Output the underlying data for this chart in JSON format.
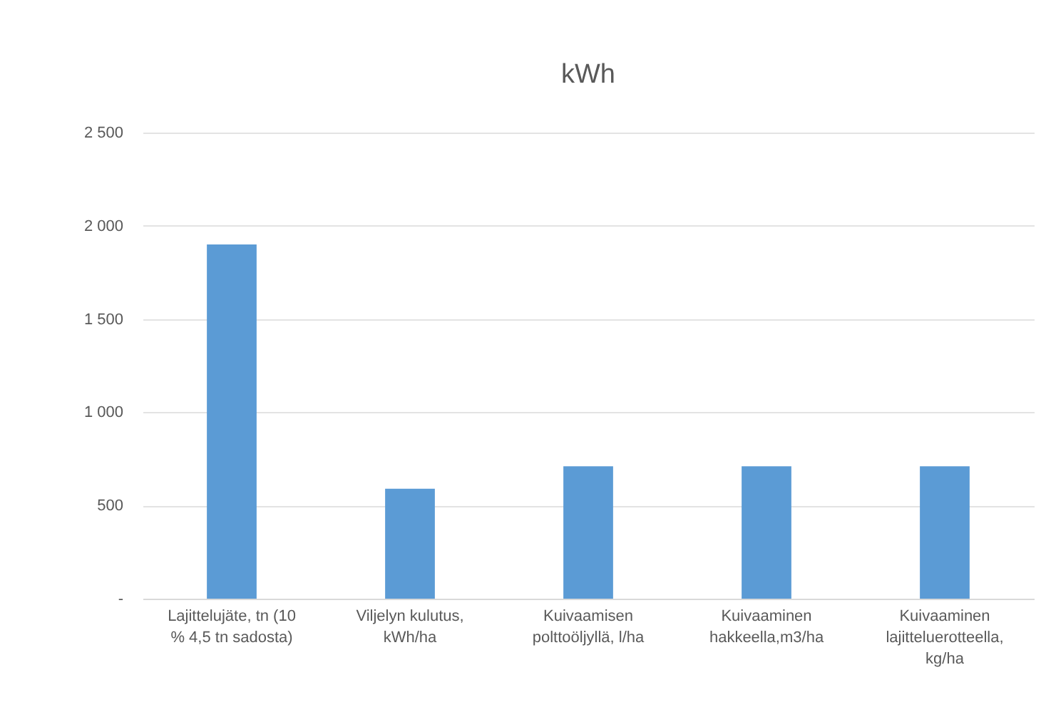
{
  "chart_data": {
    "type": "bar",
    "title": "kWh",
    "categories": [
      "Lajittelujäte, tn (10 % 4,5 tn sadosta)",
      "Viljelyn kulutus, kWh/ha",
      "Kuivaamisen polttoöljyllä, l/ha",
      "Kuivaaminen hakkeella,m3/ha",
      "Kuivaaminen lajitteluerotteella, kg/ha"
    ],
    "values": [
      1900,
      590,
      710,
      710,
      710
    ],
    "color": "#5b9bd5",
    "ylim": [
      0,
      2500
    ],
    "yticks": [
      {
        "value": 0,
        "label": "-"
      },
      500,
      1000,
      1500,
      2000,
      2500
    ],
    "grid": "y"
  }
}
